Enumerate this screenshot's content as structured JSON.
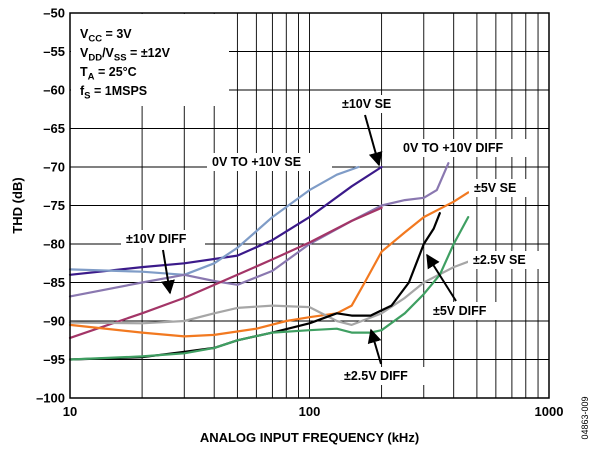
{
  "chart_data": {
    "type": "line",
    "title": "",
    "xlabel": "ANALOG INPUT FREQUENCY (kHz)",
    "ylabel": "THD (dB)",
    "x_scale": "log",
    "xlim": [
      10,
      1000
    ],
    "ylim": [
      -100,
      -50
    ],
    "x_ticks": [
      {
        "value": 10,
        "label": "10"
      },
      {
        "value": 100,
        "label": "100"
      },
      {
        "value": 1000,
        "label": "1000"
      }
    ],
    "y_ticks": [
      {
        "value": -50,
        "label": "–50"
      },
      {
        "value": -55,
        "label": "–55"
      },
      {
        "value": -60,
        "label": "–60"
      },
      {
        "value": -65,
        "label": "–65"
      },
      {
        "value": -70,
        "label": "–70"
      },
      {
        "value": -75,
        "label": "–75"
      },
      {
        "value": -80,
        "label": "–80"
      },
      {
        "value": -85,
        "label": "–85"
      },
      {
        "value": -90,
        "label": "–90"
      },
      {
        "value": -95,
        "label": "–95"
      },
      {
        "value": -100,
        "label": "–100"
      }
    ],
    "grid": true,
    "conditions": [
      {
        "base": "V",
        "sub": "CC",
        "rest": " = 3V"
      },
      {
        "base": "V",
        "sub": "DD",
        "rest": "/V",
        "sub2": "SS",
        "rest2": " = ±12V"
      },
      {
        "base": "T",
        "sub": "A",
        "rest": " = 25°C"
      },
      {
        "base": "f",
        "sub": "S",
        "rest": " = 1MSPS"
      }
    ],
    "figure_id": "04863-009",
    "series": [
      {
        "name": "±10V SE",
        "color": "#3b1a8a",
        "x": [
          10,
          20,
          30,
          50,
          70,
          100,
          150,
          200
        ],
        "y": [
          -84.0,
          -83.0,
          -82.5,
          -81.5,
          -79.5,
          -76.5,
          -72.5,
          -70.0
        ]
      },
      {
        "name": "0V TO +10V SE",
        "color": "#7f9cc7",
        "x": [
          10,
          20,
          30,
          40,
          50,
          70,
          100,
          130,
          160
        ],
        "y": [
          -83.3,
          -83.6,
          -84.0,
          -82.5,
          -80.5,
          -76.5,
          -73.0,
          -71.0,
          -70.0
        ]
      },
      {
        "name": "0V TO +10V DIFF",
        "color": "#8a78b0",
        "x": [
          10,
          20,
          30,
          40,
          50,
          70,
          100,
          150,
          200,
          250,
          300,
          340,
          380
        ],
        "y": [
          -86.8,
          -85.0,
          -84.0,
          -84.8,
          -85.3,
          -83.5,
          -80.0,
          -77.0,
          -75.0,
          -74.3,
          -74.0,
          -73.0,
          -69.5
        ]
      },
      {
        "name": "±10V DIFF",
        "color": "#a33567",
        "x": [
          10,
          20,
          30,
          50,
          70,
          100,
          150,
          200
        ],
        "y": [
          -92.2,
          -89.0,
          -87.0,
          -84.0,
          -82.0,
          -79.8,
          -77.0,
          -75.3
        ]
      },
      {
        "name": "±5V SE",
        "color": "#f27920",
        "x": [
          10,
          20,
          30,
          40,
          60,
          80,
          100,
          130,
          150,
          170,
          200,
          250,
          300,
          400,
          460
        ],
        "y": [
          -90.5,
          -91.5,
          -92.0,
          -91.8,
          -91.0,
          -90.0,
          -89.5,
          -89.0,
          -88.0,
          -85.0,
          -81.0,
          -78.5,
          -76.5,
          -74.5,
          -73.3
        ]
      },
      {
        "name": "±2.5V SE",
        "color": "#a6a6a6",
        "x": [
          10,
          20,
          30,
          40,
          50,
          70,
          100,
          130,
          150,
          200,
          250,
          300,
          400,
          460
        ],
        "y": [
          -90.2,
          -90.3,
          -90.0,
          -89.0,
          -88.3,
          -88.0,
          -88.2,
          -90.0,
          -90.5,
          -89.0,
          -87.0,
          -85.0,
          -83.0,
          -82.3
        ]
      },
      {
        "name": "±5V DIFF",
        "color": "#000000",
        "x": [
          10,
          20,
          30,
          40,
          50,
          70,
          100,
          130,
          150,
          180,
          220,
          260,
          300,
          330,
          350
        ],
        "y": [
          -95.0,
          -94.7,
          -94.0,
          -93.5,
          -92.5,
          -91.5,
          -90.3,
          -89.0,
          -89.3,
          -89.3,
          -88.0,
          -85.0,
          -80.0,
          -78.0,
          -76.0
        ]
      },
      {
        "name": "±2.5V DIFF",
        "color": "#3f9f62",
        "x": [
          10,
          20,
          30,
          40,
          50,
          70,
          100,
          130,
          150,
          180,
          200,
          250,
          300,
          350,
          400,
          460
        ],
        "y": [
          -95.0,
          -94.6,
          -94.2,
          -93.5,
          -92.5,
          -91.5,
          -91.2,
          -91.0,
          -91.5,
          -91.5,
          -91.2,
          -89.0,
          -86.5,
          -84.0,
          -80.0,
          -76.5
        ]
      }
    ],
    "annotations": [
      {
        "text": "±10V SE",
        "series": "±10V SE"
      },
      {
        "text": "0V TO +10V SE",
        "series": "0V TO +10V SE"
      },
      {
        "text": "0V TO +10V DIFF",
        "series": "0V TO +10V DIFF"
      },
      {
        "text": "±10V DIFF",
        "series": "±10V DIFF"
      },
      {
        "text": "±5V SE",
        "series": "±5V SE"
      },
      {
        "text": "±2.5V SE",
        "series": "±2.5V SE"
      },
      {
        "text": "±5V DIFF",
        "series": "±5V DIFF"
      },
      {
        "text": "±2.5V DIFF",
        "series": "±2.5V DIFF"
      }
    ]
  }
}
